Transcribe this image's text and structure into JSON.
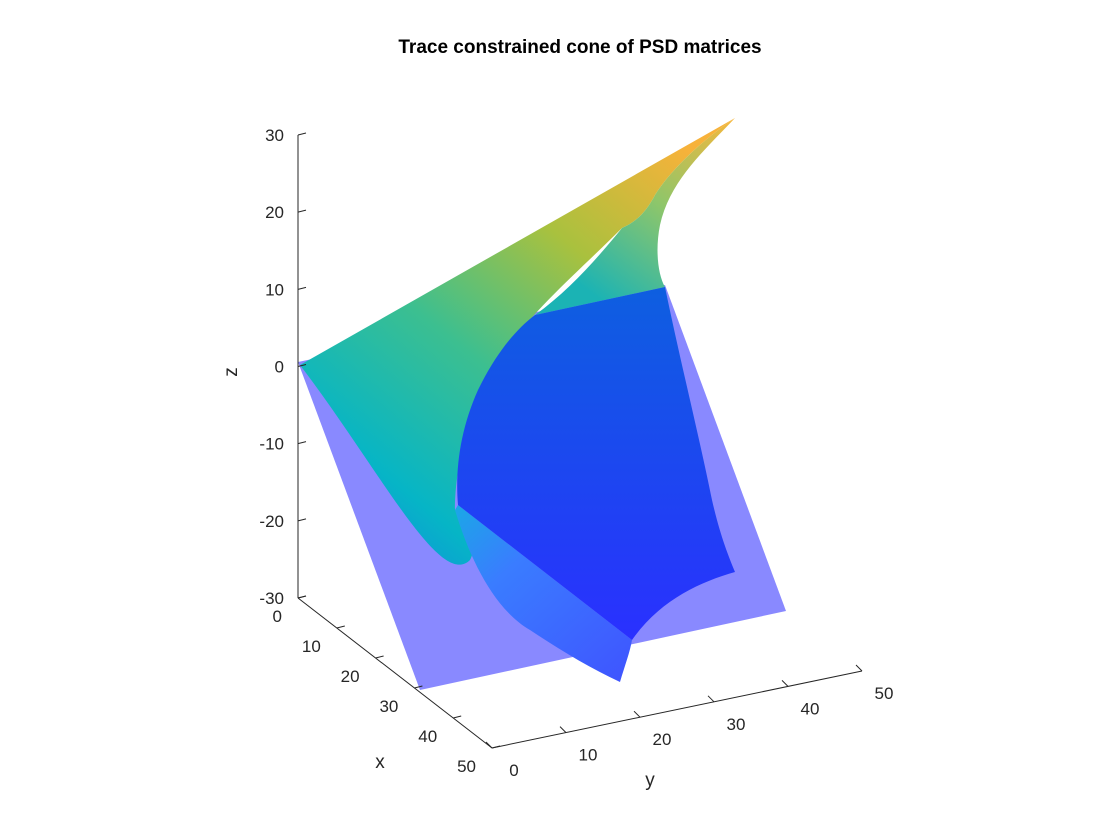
{
  "chart_data": {
    "type": "surface3d",
    "title": "Trace constrained cone of PSD matrices",
    "axes": {
      "x": {
        "label": "x",
        "ticks": [
          0,
          10,
          20,
          30,
          40,
          50
        ],
        "tick_labels": [
          "0",
          "10",
          "20",
          "30",
          "40",
          "50"
        ],
        "lim": [
          0,
          50
        ]
      },
      "y": {
        "label": "y",
        "ticks": [
          0,
          10,
          20,
          30,
          40,
          50
        ],
        "tick_labels": [
          "0",
          "10",
          "20",
          "30",
          "40",
          "50"
        ],
        "lim": [
          0,
          50
        ]
      },
      "z": {
        "label": "z",
        "ticks": [
          -30,
          -20,
          -10,
          0,
          10,
          20,
          30
        ],
        "tick_labels": [
          "-30",
          "-20",
          "-10",
          "0",
          "10",
          "20",
          "30"
        ],
        "lim": [
          -30,
          30
        ]
      }
    },
    "surfaces": [
      {
        "name": "",
        "kind": "plane",
        "color": "#7f7fff",
        "opacity": 0.5,
        "corners": [
          [
            0,
            0,
            0
          ],
          [
            50,
            0,
            0
          ],
          [
            50,
            50,
            0
          ],
          [
            0,
            50,
            0
          ]
        ]
      },
      {
        "name": "",
        "kind": "cone",
        "colormap": "parula",
        "colormap_colors": [
          "#352a87",
          "#0f5cdd",
          "#1481d6",
          "#06a4ca",
          "#2eb7a4",
          "#87bf77",
          "#d1bb59",
          "#fec832",
          "#f9fb0e"
        ]
      }
    ],
    "grid": false,
    "legend": "none"
  }
}
